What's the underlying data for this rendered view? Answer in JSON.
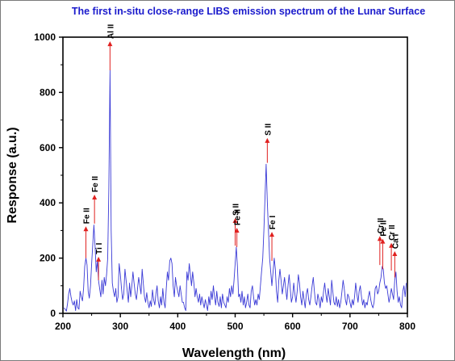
{
  "chart_data": {
    "type": "line",
    "title": "The first in-situ close-range LIBS emission spectrum of the Lunar Surface",
    "xlabel": "Wavelength (nm)",
    "ylabel": "Response (a.u.)",
    "xlim": [
      200,
      800
    ],
    "ylim": [
      0,
      1000
    ],
    "xticks": [
      200,
      300,
      400,
      500,
      600,
      700,
      800
    ],
    "yticks": [
      0,
      200,
      400,
      600,
      800,
      1000
    ],
    "grid": false,
    "colors": {
      "line": "#3a3ad6",
      "arrow": "#e0201f",
      "title": "#1a1acc",
      "frame": "#7a7a7a"
    },
    "series": [
      {
        "values": [
          [
            202,
            20
          ],
          [
            204,
            15
          ],
          [
            206,
            8
          ],
          [
            208,
            35
          ],
          [
            210,
            70
          ],
          [
            212,
            90
          ],
          [
            214,
            60
          ],
          [
            216,
            40
          ],
          [
            218,
            30
          ],
          [
            220,
            45
          ],
          [
            222,
            10
          ],
          [
            224,
            50
          ],
          [
            226,
            20
          ],
          [
            228,
            15
          ],
          [
            230,
            80
          ],
          [
            232,
            60
          ],
          [
            234,
            45
          ],
          [
            236,
            90
          ],
          [
            238,
            170
          ],
          [
            240,
            200
          ],
          [
            242,
            175
          ],
          [
            244,
            80
          ],
          [
            246,
            55
          ],
          [
            248,
            100
          ],
          [
            250,
            180
          ],
          [
            252,
            250
          ],
          [
            254,
            320
          ],
          [
            256,
            240
          ],
          [
            258,
            150
          ],
          [
            260,
            190
          ],
          [
            262,
            120
          ],
          [
            264,
            90
          ],
          [
            266,
            60
          ],
          [
            268,
            120
          ],
          [
            270,
            70
          ],
          [
            272,
            130
          ],
          [
            274,
            100
          ],
          [
            276,
            140
          ],
          [
            278,
            200
          ],
          [
            280,
            450
          ],
          [
            282,
            880
          ],
          [
            284,
            300
          ],
          [
            286,
            110
          ],
          [
            288,
            80
          ],
          [
            290,
            60
          ],
          [
            292,
            90
          ],
          [
            294,
            40
          ],
          [
            296,
            60
          ],
          [
            298,
            180
          ],
          [
            300,
            140
          ],
          [
            302,
            90
          ],
          [
            304,
            50
          ],
          [
            306,
            70
          ],
          [
            308,
            160
          ],
          [
            310,
            120
          ],
          [
            312,
            80
          ],
          [
            314,
            40
          ],
          [
            316,
            110
          ],
          [
            318,
            60
          ],
          [
            320,
            100
          ],
          [
            322,
            150
          ],
          [
            324,
            110
          ],
          [
            326,
            70
          ],
          [
            328,
            50
          ],
          [
            330,
            90
          ],
          [
            332,
            130
          ],
          [
            334,
            100
          ],
          [
            336,
            70
          ],
          [
            338,
            160
          ],
          [
            340,
            110
          ],
          [
            342,
            60
          ],
          [
            344,
            40
          ],
          [
            346,
            75
          ],
          [
            348,
            40
          ],
          [
            350,
            20
          ],
          [
            352,
            45
          ],
          [
            354,
            25
          ],
          [
            356,
            85
          ],
          [
            358,
            50
          ],
          [
            360,
            30
          ],
          [
            362,
            70
          ],
          [
            364,
            100
          ],
          [
            366,
            45
          ],
          [
            368,
            20
          ],
          [
            370,
            60
          ],
          [
            372,
            30
          ],
          [
            374,
            90
          ],
          [
            376,
            40
          ],
          [
            378,
            20
          ],
          [
            380,
            90
          ],
          [
            382,
            150
          ],
          [
            384,
            120
          ],
          [
            386,
            190
          ],
          [
            388,
            200
          ],
          [
            390,
            180
          ],
          [
            392,
            100
          ],
          [
            394,
            60
          ],
          [
            396,
            130
          ],
          [
            398,
            100
          ],
          [
            400,
            80
          ],
          [
            402,
            60
          ],
          [
            404,
            100
          ],
          [
            406,
            70
          ],
          [
            408,
            40
          ],
          [
            410,
            40
          ],
          [
            412,
            20
          ],
          [
            414,
            10
          ],
          [
            416,
            150
          ],
          [
            418,
            120
          ],
          [
            420,
            180
          ],
          [
            422,
            140
          ],
          [
            424,
            100
          ],
          [
            426,
            150
          ],
          [
            428,
            110
          ],
          [
            430,
            60
          ],
          [
            432,
            90
          ],
          [
            434,
            60
          ],
          [
            436,
            40
          ],
          [
            438,
            70
          ],
          [
            440,
            30
          ],
          [
            442,
            60
          ],
          [
            444,
            40
          ],
          [
            446,
            20
          ],
          [
            448,
            50
          ],
          [
            450,
            30
          ],
          [
            452,
            10
          ],
          [
            454,
            60
          ],
          [
            456,
            30
          ],
          [
            458,
            80
          ],
          [
            460,
            50
          ],
          [
            462,
            100
          ],
          [
            464,
            60
          ],
          [
            466,
            30
          ],
          [
            468,
            80
          ],
          [
            470,
            40
          ],
          [
            472,
            25
          ],
          [
            474,
            60
          ],
          [
            476,
            20
          ],
          [
            478,
            70
          ],
          [
            480,
            40
          ],
          [
            482,
            30
          ],
          [
            484,
            20
          ],
          [
            486,
            60
          ],
          [
            488,
            40
          ],
          [
            490,
            90
          ],
          [
            492,
            60
          ],
          [
            494,
            100
          ],
          [
            496,
            70
          ],
          [
            498,
            120
          ],
          [
            500,
            180
          ],
          [
            502,
            240
          ],
          [
            504,
            170
          ],
          [
            506,
            60
          ],
          [
            508,
            70
          ],
          [
            510,
            40
          ],
          [
            512,
            80
          ],
          [
            514,
            30
          ],
          [
            516,
            60
          ],
          [
            518,
            20
          ],
          [
            520,
            40
          ],
          [
            522,
            70
          ],
          [
            524,
            30
          ],
          [
            526,
            20
          ],
          [
            528,
            80
          ],
          [
            530,
            100
          ],
          [
            532,
            60
          ],
          [
            534,
            30
          ],
          [
            536,
            50
          ],
          [
            538,
            30
          ],
          [
            540,
            70
          ],
          [
            542,
            50
          ],
          [
            544,
            100
          ],
          [
            546,
            150
          ],
          [
            548,
            200
          ],
          [
            550,
            300
          ],
          [
            552,
            420
          ],
          [
            554,
            540
          ],
          [
            556,
            400
          ],
          [
            558,
            300
          ],
          [
            560,
            200
          ],
          [
            562,
            150
          ],
          [
            564,
            100
          ],
          [
            566,
            150
          ],
          [
            568,
            200
          ],
          [
            570,
            160
          ],
          [
            572,
            80
          ],
          [
            574,
            40
          ],
          [
            576,
            120
          ],
          [
            578,
            160
          ],
          [
            580,
            120
          ],
          [
            582,
            70
          ],
          [
            584,
            100
          ],
          [
            586,
            130
          ],
          [
            588,
            90
          ],
          [
            590,
            50
          ],
          [
            592,
            100
          ],
          [
            594,
            140
          ],
          [
            596,
            90
          ],
          [
            598,
            40
          ],
          [
            600,
            60
          ],
          [
            602,
            110
          ],
          [
            604,
            70
          ],
          [
            606,
            40
          ],
          [
            608,
            80
          ],
          [
            610,
            140
          ],
          [
            612,
            110
          ],
          [
            614,
            60
          ],
          [
            616,
            30
          ],
          [
            618,
            80
          ],
          [
            620,
            50
          ],
          [
            622,
            20
          ],
          [
            624,
            70
          ],
          [
            626,
            90
          ],
          [
            628,
            50
          ],
          [
            630,
            30
          ],
          [
            632,
            60
          ],
          [
            634,
            100
          ],
          [
            636,
            130
          ],
          [
            638,
            80
          ],
          [
            640,
            40
          ],
          [
            642,
            30
          ],
          [
            644,
            70
          ],
          [
            646,
            50
          ],
          [
            648,
            20
          ],
          [
            650,
            60
          ],
          [
            652,
            40
          ],
          [
            654,
            80
          ],
          [
            656,
            110
          ],
          [
            658,
            70
          ],
          [
            660,
            40
          ],
          [
            662,
            90
          ],
          [
            664,
            60
          ],
          [
            666,
            30
          ],
          [
            668,
            120
          ],
          [
            670,
            80
          ],
          [
            672,
            40
          ],
          [
            674,
            30
          ],
          [
            676,
            60
          ],
          [
            678,
            25
          ],
          [
            680,
            50
          ],
          [
            682,
            20
          ],
          [
            684,
            40
          ],
          [
            686,
            80
          ],
          [
            688,
            120
          ],
          [
            690,
            90
          ],
          [
            692,
            50
          ],
          [
            694,
            30
          ],
          [
            696,
            70
          ],
          [
            698,
            60
          ],
          [
            700,
            40
          ],
          [
            702,
            20
          ],
          [
            704,
            50
          ],
          [
            706,
            30
          ],
          [
            708,
            60
          ],
          [
            710,
            110
          ],
          [
            712,
            70
          ],
          [
            714,
            40
          ],
          [
            716,
            80
          ],
          [
            718,
            100
          ],
          [
            720,
            60
          ],
          [
            722,
            30
          ],
          [
            724,
            50
          ],
          [
            726,
            20
          ],
          [
            728,
            40
          ],
          [
            730,
            30
          ],
          [
            732,
            60
          ],
          [
            734,
            80
          ],
          [
            736,
            50
          ],
          [
            738,
            30
          ],
          [
            740,
            20
          ],
          [
            742,
            40
          ],
          [
            744,
            90
          ],
          [
            746,
            100
          ],
          [
            748,
            70
          ],
          [
            750,
            80
          ],
          [
            752,
            110
          ],
          [
            754,
            130
          ],
          [
            756,
            170
          ],
          [
            758,
            160
          ],
          [
            760,
            110
          ],
          [
            762,
            90
          ],
          [
            764,
            100
          ],
          [
            766,
            70
          ],
          [
            768,
            40
          ],
          [
            770,
            60
          ],
          [
            772,
            90
          ],
          [
            774,
            70
          ],
          [
            776,
            50
          ],
          [
            778,
            120
          ],
          [
            780,
            150
          ],
          [
            782,
            80
          ],
          [
            784,
            40
          ],
          [
            786,
            60
          ],
          [
            788,
            30
          ],
          [
            790,
            20
          ],
          [
            792,
            80
          ],
          [
            794,
            100
          ],
          [
            796,
            60
          ],
          [
            798,
            110
          ]
        ]
      }
    ],
    "annotations": [
      {
        "label": "Fe II",
        "x": 240,
        "y_base": 200,
        "y_tip": 315
      },
      {
        "label": "Fe II",
        "x": 255,
        "y_base": 325,
        "y_tip": 430
      },
      {
        "label": "Ti I",
        "x": 262,
        "y_base": 120,
        "y_tip": 205
      },
      {
        "label": "Al II",
        "x": 282,
        "y_base": 880,
        "y_tip": 985
      },
      {
        "label": "S II",
        "x": 500,
        "y_base": 245,
        "y_tip": 345
      },
      {
        "label": "Fe II",
        "x": 503,
        "y_base": 240,
        "y_tip": 310
      },
      {
        "label": "S II",
        "x": 556,
        "y_base": 545,
        "y_tip": 635
      },
      {
        "label": "Fe I",
        "x": 564,
        "y_base": 190,
        "y_tip": 295
      },
      {
        "label": "Cr II",
        "x": 752,
        "y_base": 175,
        "y_tip": 280
      },
      {
        "label": "Fe II",
        "x": 757,
        "y_base": 160,
        "y_tip": 270
      },
      {
        "label": "Cr II",
        "x": 772,
        "y_base": 155,
        "y_tip": 255
      },
      {
        "label": "Ca I",
        "x": 778,
        "y_base": 130,
        "y_tip": 225
      }
    ]
  }
}
